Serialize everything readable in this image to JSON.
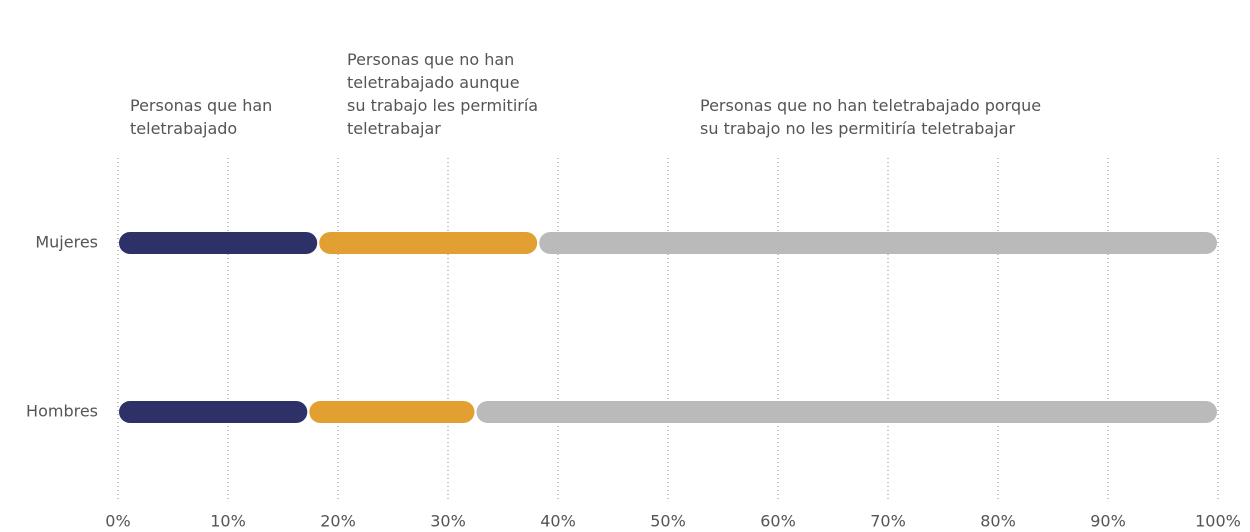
{
  "chart_data": {
    "type": "stacked-bar-horizontal",
    "categories": [
      "Mujeres",
      "Hombres"
    ],
    "series": [
      {
        "name": "Personas que han teletrabajado",
        "color": "#2e3168",
        "values": [
          18.2,
          17.3
        ]
      },
      {
        "name": "Personas que no han teletrabajado aunque su trabajo les permitiría teletrabajar",
        "color": "#e3a032",
        "values": [
          20,
          15.2
        ]
      },
      {
        "name": "Personas que no han teletrabajado porque su trabajo no les permitiría teletrabajar",
        "color": "#bababa",
        "values": [
          61.8,
          67.5
        ]
      }
    ],
    "xlim": [
      0,
      100
    ],
    "xticks": [
      {
        "value": 0,
        "label": "0%"
      },
      {
        "value": 10,
        "label": "10%"
      },
      {
        "value": 20,
        "label": "20%"
      },
      {
        "value": 30,
        "label": "30%"
      },
      {
        "value": 40,
        "label": "40%"
      },
      {
        "value": 50,
        "label": "50%"
      },
      {
        "value": 60,
        "label": "60%"
      },
      {
        "value": 70,
        "label": "70%"
      },
      {
        "value": 80,
        "label": "80%"
      },
      {
        "value": 90,
        "label": "90%"
      },
      {
        "value": 100,
        "label": "100%"
      }
    ],
    "grid": true
  }
}
